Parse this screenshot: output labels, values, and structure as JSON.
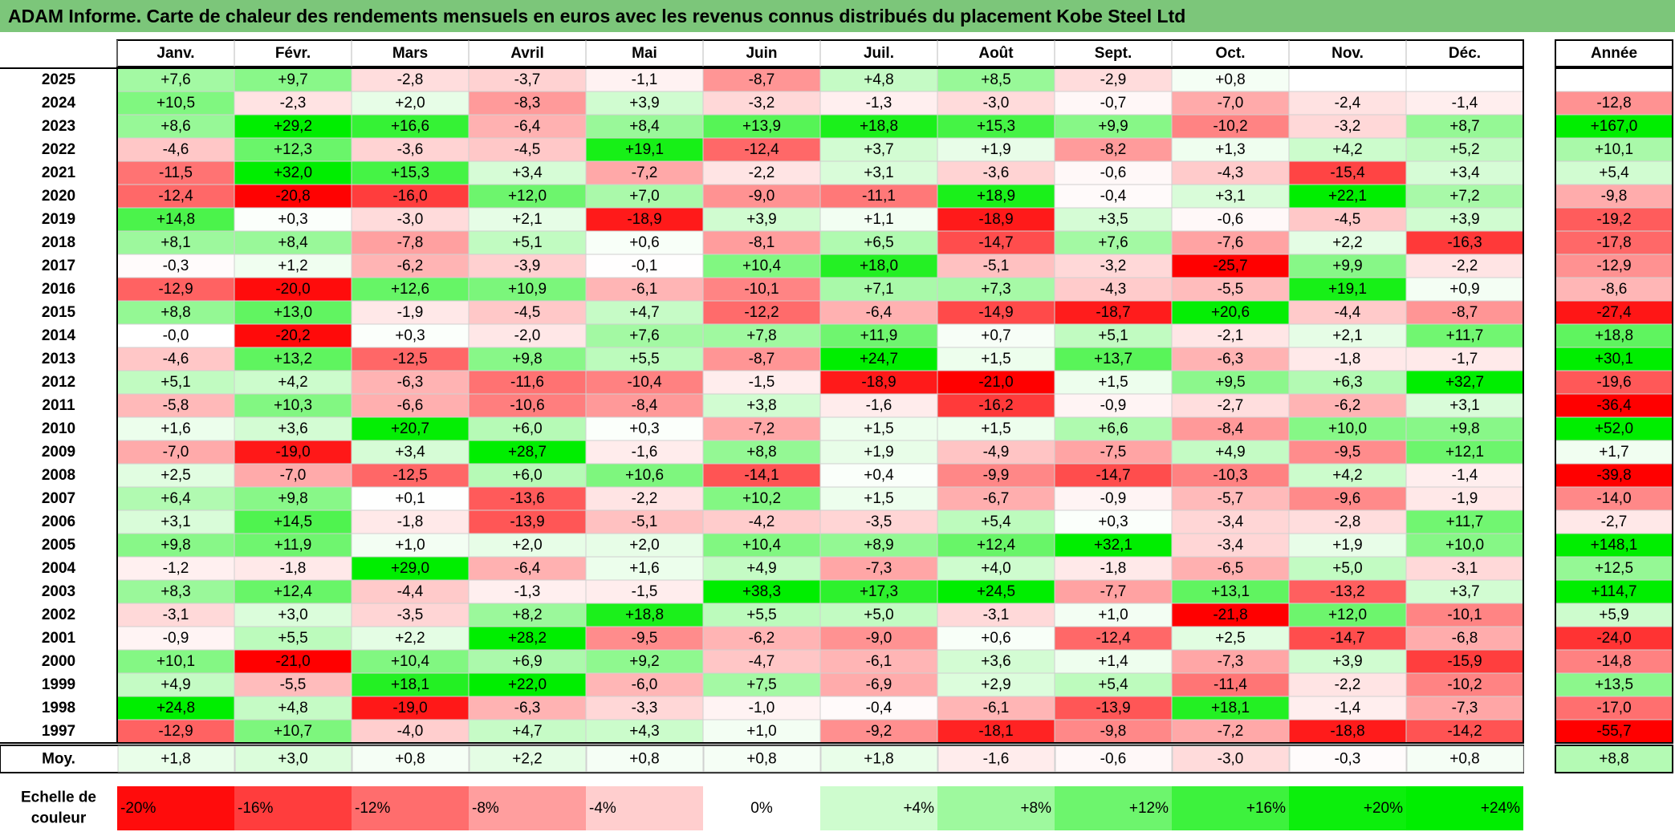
{
  "title": "ADAM Informe. Carte de chaleur des rendements mensuels en euros avec les revenus connus distribués du placement Kobe Steel Ltd",
  "chart_data": {
    "type": "heatmap",
    "months": [
      "Janv.",
      "Févr.",
      "Mars",
      "Avril",
      "Mai",
      "Juin",
      "Juil.",
      "Août",
      "Sept.",
      "Oct.",
      "Nov.",
      "Déc."
    ],
    "year_header": "Année",
    "rows": [
      {
        "year": "2025",
        "values": [
          "+7,6",
          "+9,7",
          "-2,8",
          "-3,7",
          "-1,1",
          "-8,7",
          "+4,8",
          "+8,5",
          "-2,9",
          "+0,8",
          "",
          ""
        ],
        "annual": ""
      },
      {
        "year": "2024",
        "values": [
          "+10,5",
          "-2,3",
          "+2,0",
          "-8,3",
          "+3,9",
          "-3,2",
          "-1,3",
          "-3,0",
          "-0,7",
          "-7,0",
          "-2,4",
          "-1,4"
        ],
        "annual": "-12,8"
      },
      {
        "year": "2023",
        "values": [
          "+8,6",
          "+29,2",
          "+16,6",
          "-6,4",
          "+8,4",
          "+13,9",
          "+18,8",
          "+15,3",
          "+9,9",
          "-10,2",
          "-3,2",
          "+8,7"
        ],
        "annual": "+167,0"
      },
      {
        "year": "2022",
        "values": [
          "-4,6",
          "+12,3",
          "-3,6",
          "-4,5",
          "+19,1",
          "-12,4",
          "+3,7",
          "+1,9",
          "-8,2",
          "+1,3",
          "+4,2",
          "+5,2"
        ],
        "annual": "+10,1"
      },
      {
        "year": "2021",
        "values": [
          "-11,5",
          "+32,0",
          "+15,3",
          "+3,4",
          "-7,2",
          "-2,2",
          "+3,1",
          "-3,6",
          "-0,6",
          "-4,3",
          "-15,4",
          "+3,4"
        ],
        "annual": "+5,4"
      },
      {
        "year": "2020",
        "values": [
          "-12,4",
          "-20,8",
          "-16,0",
          "+12,0",
          "+7,0",
          "-9,0",
          "-11,1",
          "+18,9",
          "-0,4",
          "+3,1",
          "+22,1",
          "+7,2"
        ],
        "annual": "-9,8"
      },
      {
        "year": "2019",
        "values": [
          "+14,8",
          "+0,3",
          "-3,0",
          "+2,1",
          "-18,9",
          "+3,9",
          "+1,1",
          "-18,9",
          "+3,5",
          "-0,6",
          "-4,5",
          "+3,9"
        ],
        "annual": "-19,2"
      },
      {
        "year": "2018",
        "values": [
          "+8,1",
          "+8,4",
          "-7,8",
          "+5,1",
          "+0,6",
          "-8,1",
          "+6,5",
          "-14,7",
          "+7,6",
          "-7,6",
          "+2,2",
          "-16,3"
        ],
        "annual": "-17,8"
      },
      {
        "year": "2017",
        "values": [
          "-0,3",
          "+1,2",
          "-6,2",
          "-3,9",
          "-0,1",
          "+10,4",
          "+18,0",
          "-5,1",
          "-3,2",
          "-25,7",
          "+9,9",
          "-2,2"
        ],
        "annual": "-12,9"
      },
      {
        "year": "2016",
        "values": [
          "-12,9",
          "-20,0",
          "+12,6",
          "+10,9",
          "-6,1",
          "-10,1",
          "+7,1",
          "+7,3",
          "-4,3",
          "-5,5",
          "+19,1",
          "+0,9"
        ],
        "annual": "-8,6"
      },
      {
        "year": "2015",
        "values": [
          "+8,8",
          "+13,0",
          "-1,9",
          "-4,5",
          "+4,7",
          "-12,2",
          "-6,4",
          "-14,9",
          "-18,7",
          "+20,6",
          "-4,4",
          "-8,7"
        ],
        "annual": "-27,4"
      },
      {
        "year": "2014",
        "values": [
          "-0,0",
          "-20,2",
          "+0,3",
          "-2,0",
          "+7,6",
          "+7,8",
          "+11,9",
          "+0,7",
          "+5,1",
          "-2,1",
          "+2,1",
          "+11,7"
        ],
        "annual": "+18,8"
      },
      {
        "year": "2013",
        "values": [
          "-4,6",
          "+13,2",
          "-12,5",
          "+9,8",
          "+5,5",
          "-8,7",
          "+24,7",
          "+1,5",
          "+13,7",
          "-6,3",
          "-1,8",
          "-1,7"
        ],
        "annual": "+30,1"
      },
      {
        "year": "2012",
        "values": [
          "+5,1",
          "+4,2",
          "-6,3",
          "-11,6",
          "-10,4",
          "-1,5",
          "-18,9",
          "-21,0",
          "+1,5",
          "+9,5",
          "+6,3",
          "+32,7"
        ],
        "annual": "-19,6"
      },
      {
        "year": "2011",
        "values": [
          "-5,8",
          "+10,3",
          "-6,6",
          "-10,6",
          "-8,4",
          "+3,8",
          "-1,6",
          "-16,2",
          "-0,9",
          "-2,7",
          "-6,2",
          "+3,1"
        ],
        "annual": "-36,4"
      },
      {
        "year": "2010",
        "values": [
          "+1,6",
          "+3,6",
          "+20,7",
          "+6,0",
          "+0,3",
          "-7,2",
          "+1,5",
          "+1,5",
          "+6,6",
          "-8,4",
          "+10,0",
          "+9,8"
        ],
        "annual": "+52,0"
      },
      {
        "year": "2009",
        "values": [
          "-7,0",
          "-19,0",
          "+3,4",
          "+28,7",
          "-1,6",
          "+8,8",
          "+1,9",
          "-4,9",
          "-7,5",
          "+4,9",
          "-9,5",
          "+12,1"
        ],
        "annual": "+1,7"
      },
      {
        "year": "2008",
        "values": [
          "+2,5",
          "-7,0",
          "-12,5",
          "+6,0",
          "+10,6",
          "-14,1",
          "+0,4",
          "-9,9",
          "-14,7",
          "-10,3",
          "+4,2",
          "-1,4"
        ],
        "annual": "-39,8"
      },
      {
        "year": "2007",
        "values": [
          "+6,4",
          "+9,8",
          "+0,1",
          "-13,6",
          "-2,2",
          "+10,2",
          "+1,5",
          "-6,7",
          "-0,9",
          "-5,7",
          "-9,6",
          "-1,9"
        ],
        "annual": "-14,0"
      },
      {
        "year": "2006",
        "values": [
          "+3,1",
          "+14,5",
          "-1,8",
          "-13,9",
          "-5,1",
          "-4,2",
          "-3,5",
          "+5,4",
          "+0,3",
          "-3,4",
          "-2,8",
          "+11,7"
        ],
        "annual": "-2,7"
      },
      {
        "year": "2005",
        "values": [
          "+9,8",
          "+11,9",
          "+1,0",
          "+2,0",
          "+2,0",
          "+10,4",
          "+8,9",
          "+12,4",
          "+32,1",
          "-3,4",
          "+1,9",
          "+10,0"
        ],
        "annual": "+148,1"
      },
      {
        "year": "2004",
        "values": [
          "-1,2",
          "-1,8",
          "+29,0",
          "-6,4",
          "+1,6",
          "+4,9",
          "-7,3",
          "+4,0",
          "-1,8",
          "-6,5",
          "+5,0",
          "-3,1"
        ],
        "annual": "+12,5"
      },
      {
        "year": "2003",
        "values": [
          "+8,3",
          "+12,4",
          "-4,4",
          "-1,3",
          "-1,5",
          "+38,3",
          "+17,3",
          "+24,5",
          "-7,7",
          "+13,1",
          "-13,2",
          "+3,7"
        ],
        "annual": "+114,7"
      },
      {
        "year": "2002",
        "values": [
          "-3,1",
          "+3,0",
          "-3,5",
          "+8,2",
          "+18,8",
          "+5,5",
          "+5,0",
          "-3,1",
          "+1,0",
          "-21,8",
          "+12,0",
          "-10,1"
        ],
        "annual": "+5,9"
      },
      {
        "year": "2001",
        "values": [
          "-0,9",
          "+5,5",
          "+2,2",
          "+28,2",
          "-9,5",
          "-6,2",
          "-9,0",
          "+0,6",
          "-12,4",
          "+2,5",
          "-14,7",
          "-6,8"
        ],
        "annual": "-24,0"
      },
      {
        "year": "2000",
        "values": [
          "+10,1",
          "-21,0",
          "+10,4",
          "+6,9",
          "+9,2",
          "-4,7",
          "-6,1",
          "+3,6",
          "+1,4",
          "-7,3",
          "+3,9",
          "-15,9"
        ],
        "annual": "-14,8"
      },
      {
        "year": "1999",
        "values": [
          "+4,9",
          "-5,5",
          "+18,1",
          "+22,0",
          "-6,0",
          "+7,5",
          "-6,9",
          "+2,9",
          "+5,4",
          "-11,4",
          "-2,2",
          "-10,2"
        ],
        "annual": "+13,5"
      },
      {
        "year": "1998",
        "values": [
          "+24,8",
          "+4,8",
          "-19,0",
          "-6,3",
          "-3,3",
          "-1,0",
          "-0,4",
          "-6,1",
          "-13,9",
          "+18,1",
          "-1,4",
          "-7,3"
        ],
        "annual": "-17,0"
      },
      {
        "year": "1997",
        "values": [
          "-12,9",
          "+10,7",
          "-4,0",
          "+4,7",
          "+4,3",
          "+1,0",
          "-9,2",
          "-18,1",
          "-9,8",
          "-7,2",
          "-18,8",
          "-14,2"
        ],
        "annual": "-55,7"
      }
    ],
    "average": {
      "label": "Moy.",
      "values": [
        "+1,8",
        "+3,0",
        "+0,8",
        "+2,2",
        "+0,8",
        "+0,8",
        "+1,8",
        "-1,6",
        "-0,6",
        "-3,0",
        "-0,3",
        "+0,8"
      ],
      "annual": "+8,8"
    },
    "scale": {
      "label_line1": "Echelle de",
      "label_line2": "couleur",
      "items": [
        {
          "label": "-20%",
          "value": -20
        },
        {
          "label": "-16%",
          "value": -16
        },
        {
          "label": "-12%",
          "value": -12
        },
        {
          "label": "-8%",
          "value": -8
        },
        {
          "label": "-4%",
          "value": -4
        },
        {
          "label": "0%",
          "value": 0
        },
        {
          "label": "+4%",
          "value": 4
        },
        {
          "label": "+8%",
          "value": 8
        },
        {
          "label": "+12%",
          "value": 12
        },
        {
          "label": "+16%",
          "value": 16
        },
        {
          "label": "+20%",
          "value": 20
        },
        {
          "label": "+24%",
          "value": 24
        }
      ]
    },
    "colors": {
      "title_background": "#7cc67a",
      "negative_max": "#ff0000",
      "neutral": "#ffffff",
      "positive_max": "#00ee00"
    }
  }
}
